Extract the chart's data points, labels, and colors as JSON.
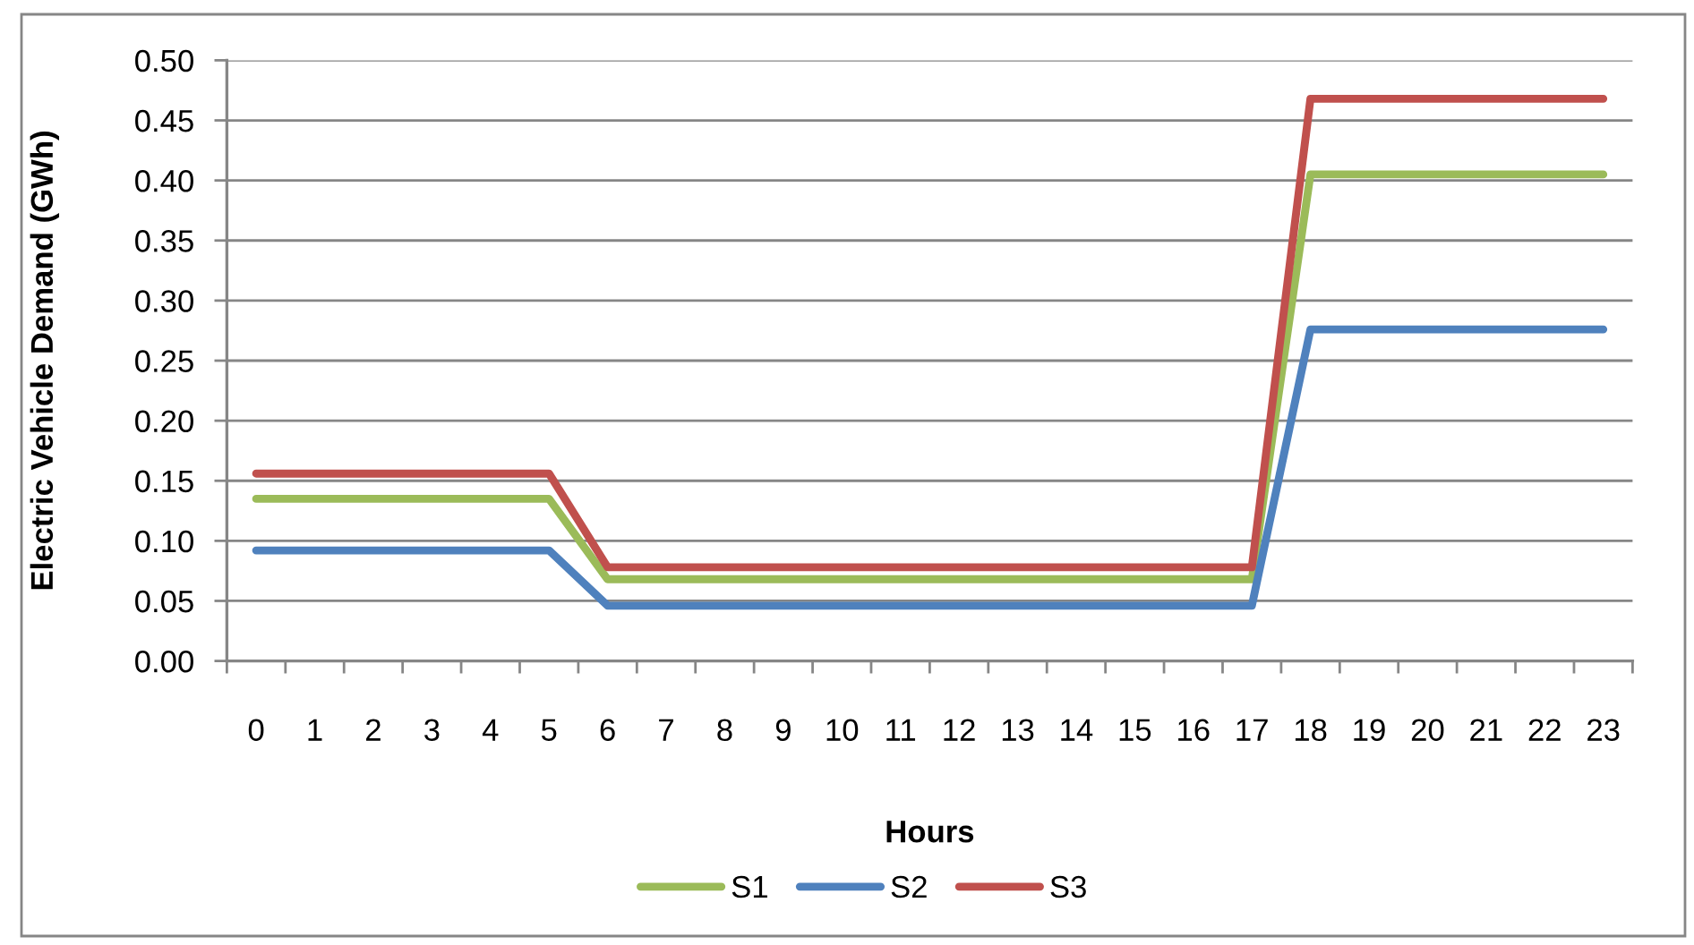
{
  "chart_data": {
    "type": "line",
    "xlabel": "Hours",
    "ylabel": "Electric Vehicle Demand (GWh)",
    "categories": [
      "0",
      "1",
      "2",
      "3",
      "4",
      "5",
      "6",
      "7",
      "8",
      "9",
      "10",
      "11",
      "12",
      "13",
      "14",
      "15",
      "16",
      "17",
      "18",
      "19",
      "20",
      "21",
      "22",
      "23"
    ],
    "series": [
      {
        "name": "S1",
        "color": "#9bbb59",
        "values": [
          0.135,
          0.135,
          0.135,
          0.135,
          0.135,
          0.135,
          0.068,
          0.068,
          0.068,
          0.068,
          0.068,
          0.068,
          0.068,
          0.068,
          0.068,
          0.068,
          0.068,
          0.068,
          0.405,
          0.405,
          0.405,
          0.405,
          0.405,
          0.405
        ]
      },
      {
        "name": "S2",
        "color": "#4f81bd",
        "values": [
          0.092,
          0.092,
          0.092,
          0.092,
          0.092,
          0.092,
          0.046,
          0.046,
          0.046,
          0.046,
          0.046,
          0.046,
          0.046,
          0.046,
          0.046,
          0.046,
          0.046,
          0.046,
          0.276,
          0.276,
          0.276,
          0.276,
          0.276,
          0.276
        ]
      },
      {
        "name": "S3",
        "color": "#c0504d",
        "values": [
          0.156,
          0.156,
          0.156,
          0.156,
          0.156,
          0.156,
          0.078,
          0.078,
          0.078,
          0.078,
          0.078,
          0.078,
          0.078,
          0.078,
          0.078,
          0.078,
          0.078,
          0.078,
          0.468,
          0.468,
          0.468,
          0.468,
          0.468,
          0.468
        ]
      }
    ],
    "ylim": [
      0,
      0.5
    ],
    "yticks": [
      {
        "value": 0,
        "label": "0.00"
      },
      {
        "value": 0.05,
        "label": "0.05"
      },
      {
        "value": 0.1,
        "label": "0.10"
      },
      {
        "value": 0.15,
        "label": "0.15"
      },
      {
        "value": 0.2,
        "label": "0.20"
      },
      {
        "value": 0.25,
        "label": "0.25"
      },
      {
        "value": 0.3,
        "label": "0.30"
      },
      {
        "value": 0.35,
        "label": "0.35"
      },
      {
        "value": 0.4,
        "label": "0.40"
      },
      {
        "value": 0.45,
        "label": "0.45"
      },
      {
        "value": 0.5,
        "label": "0.50"
      }
    ],
    "grid": "y",
    "legend": "bottom",
    "marker": "none",
    "line_style": "solid"
  }
}
